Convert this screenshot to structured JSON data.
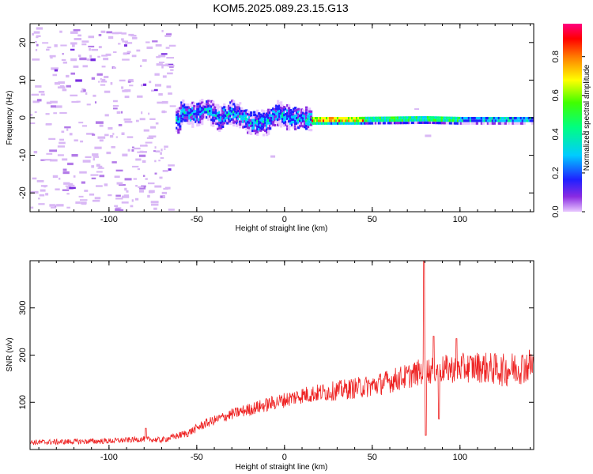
{
  "figure": {
    "title": "KOM5.2025.089.23.15.G13"
  },
  "chart_data": [
    {
      "type": "heatmap",
      "xlabel": "Height of straight line (km)",
      "ylabel": "Frequency (Hz)",
      "xlim": [
        -145,
        142
      ],
      "ylim": [
        -25,
        25
      ],
      "xticks": [
        -100,
        -50,
        0,
        50,
        100
      ],
      "yticks": [
        -20,
        -10,
        0,
        10,
        20
      ],
      "colorbar": {
        "label": "Normalized spectral amplitude",
        "range": [
          0.0,
          0.97
        ],
        "ticks": [
          "0.0",
          "0.2",
          "0.4",
          "0.6",
          "0.8"
        ],
        "tick_values": [
          0.0,
          0.2,
          0.4,
          0.6,
          0.8
        ]
      },
      "centerline": [
        {
          "x": -60,
          "y": 1.5
        },
        {
          "x": -50,
          "y": 1.0
        },
        {
          "x": -45,
          "y": 2.5
        },
        {
          "x": -38,
          "y": 0.0
        },
        {
          "x": -30,
          "y": 1.5
        },
        {
          "x": -25,
          "y": 0.5
        },
        {
          "x": -20,
          "y": -1.5
        },
        {
          "x": -10,
          "y": -1.0
        },
        {
          "x": -5,
          "y": 1.5
        },
        {
          "x": 0,
          "y": 0.5
        },
        {
          "x": 5,
          "y": 0.0
        },
        {
          "x": 15,
          "y": -0.5
        },
        {
          "x": 40,
          "y": -0.5
        },
        {
          "x": 80,
          "y": -0.3
        },
        {
          "x": 100,
          "y": -0.5
        },
        {
          "x": 142,
          "y": -0.5
        }
      ]
    },
    {
      "type": "line",
      "xlabel": "Height of straight line (km)",
      "ylabel": "SNR (v/v)",
      "xlim": [
        -145,
        142
      ],
      "ylim": [
        0,
        400
      ],
      "xticks": [
        -100,
        -50,
        0,
        50,
        100
      ],
      "yticks": [
        100,
        200,
        300
      ],
      "series": [
        {
          "color": "#ee2222",
          "trend": [
            {
              "x": -145,
              "y": 15
            },
            {
              "x": -100,
              "y": 18
            },
            {
              "x": -80,
              "y": 22
            },
            {
              "x": -70,
              "y": 20
            },
            {
              "x": -55,
              "y": 35
            },
            {
              "x": -45,
              "y": 55
            },
            {
              "x": -30,
              "y": 75
            },
            {
              "x": -10,
              "y": 95
            },
            {
              "x": 10,
              "y": 115
            },
            {
              "x": 30,
              "y": 125
            },
            {
              "x": 50,
              "y": 135
            },
            {
              "x": 70,
              "y": 155
            },
            {
              "x": 78,
              "y": 165
            },
            {
              "x": 90,
              "y": 170
            },
            {
              "x": 110,
              "y": 175
            },
            {
              "x": 125,
              "y": 168
            },
            {
              "x": 142,
              "y": 180
            }
          ],
          "features": [
            {
              "x": -79,
              "y": 45
            },
            {
              "x": 79.5,
              "y": 400
            },
            {
              "x": 80.5,
              "y": 30
            },
            {
              "x": 85,
              "y": 240
            },
            {
              "x": 88,
              "y": 65
            },
            {
              "x": 98,
              "y": 235
            }
          ]
        }
      ]
    }
  ]
}
